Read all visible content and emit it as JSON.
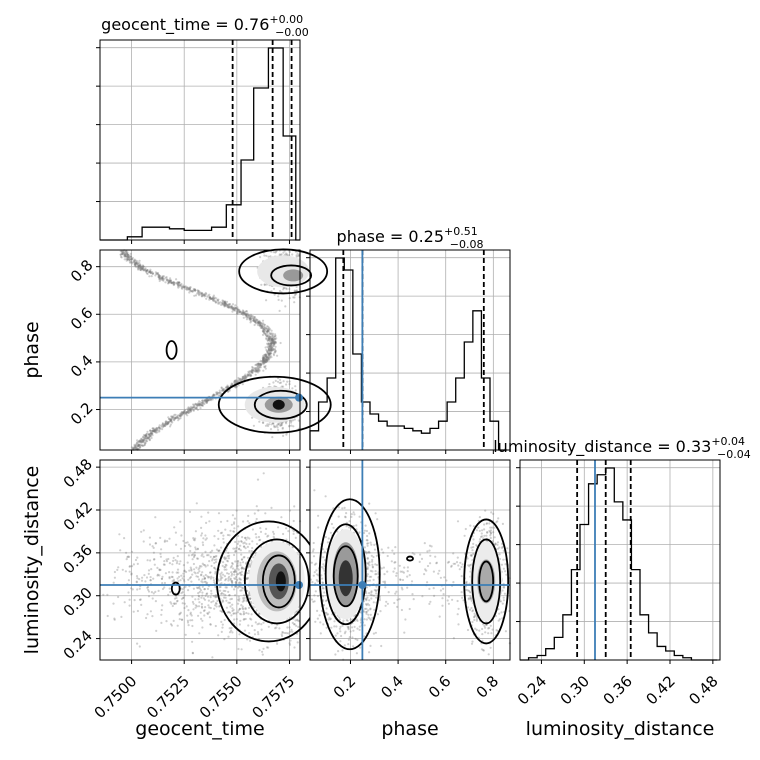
{
  "chart_data": {
    "type": "corner",
    "parameters": [
      "geocent_time",
      "phase",
      "luminosity_distance"
    ],
    "truths": {
      "geocent_time": 0.758,
      "phase": 0.25,
      "luminosity_distance": 0.315
    },
    "truth_color": "#3d7eb6",
    "titles": [
      {
        "param": "geocent_time",
        "label": "geocent_time = 0.76",
        "plus": "+0.00",
        "minus": "−0.00"
      },
      {
        "param": "phase",
        "label": "phase = 0.25",
        "plus": "+0.51",
        "minus": "−0.08"
      },
      {
        "param": "luminosity_distance",
        "label": "luminosity_distance = 0.33",
        "plus": "+0.04",
        "minus": "−0.04"
      }
    ],
    "axes": {
      "geocent_time": {
        "range": [
          0.7485,
          0.758
        ],
        "ticks": [
          0.75,
          0.7525,
          0.755,
          0.7575
        ],
        "tick_labels": [
          "0.7500",
          "0.7525",
          "0.7550",
          "0.7575"
        ],
        "quantiles": [
          0.7548,
          0.7567,
          0.7576
        ]
      },
      "phase": {
        "range": [
          0.03,
          0.87
        ],
        "ticks": [
          0.2,
          0.4,
          0.6,
          0.8
        ],
        "tick_labels": [
          "0.2",
          "0.4",
          "0.6",
          "0.8"
        ],
        "quantiles": [
          0.17,
          0.25,
          0.76
        ]
      },
      "luminosity_distance": {
        "range": [
          0.21,
          0.49
        ],
        "ticks": [
          0.24,
          0.3,
          0.36,
          0.42,
          0.48
        ],
        "tick_labels": [
          "0.24",
          "0.30",
          "0.36",
          "0.42",
          "0.48"
        ],
        "quantiles": [
          0.29,
          0.33,
          0.365
        ]
      }
    },
    "histograms": {
      "geocent_time": {
        "edges": [
          0.7485,
          0.7492,
          0.7498,
          0.7505,
          0.7512,
          0.7518,
          0.7525,
          0.7532,
          0.7538,
          0.7545,
          0.7552,
          0.7558,
          0.7565,
          0.7572,
          0.7578,
          0.758
        ],
        "counts": [
          0,
          0,
          2,
          8,
          8,
          7,
          6,
          6,
          8,
          22,
          50,
          95,
          120,
          65,
          0
        ]
      },
      "phase": {
        "edges": [
          0.03,
          0.066,
          0.102,
          0.138,
          0.174,
          0.21,
          0.246,
          0.282,
          0.318,
          0.354,
          0.39,
          0.426,
          0.462,
          0.498,
          0.534,
          0.57,
          0.606,
          0.642,
          0.678,
          0.714,
          0.75,
          0.786,
          0.822,
          0.858
        ],
        "counts": [
          8,
          20,
          30,
          80,
          75,
          40,
          20,
          15,
          12,
          10,
          10,
          9,
          8,
          7,
          9,
          12,
          20,
          30,
          45,
          58,
          30,
          12,
          0
        ]
      },
      "luminosity_distance": {
        "edges": [
          0.21,
          0.222,
          0.234,
          0.246,
          0.258,
          0.27,
          0.282,
          0.294,
          0.306,
          0.318,
          0.33,
          0.342,
          0.354,
          0.366,
          0.378,
          0.39,
          0.402,
          0.414,
          0.426,
          0.438,
          0.45,
          0.462,
          0.474,
          0.486
        ],
        "counts": [
          0,
          1,
          2,
          5,
          10,
          20,
          40,
          60,
          78,
          82,
          85,
          70,
          62,
          40,
          20,
          12,
          6,
          4,
          2,
          1,
          0,
          0,
          0
        ]
      }
    },
    "pairs": [
      {
        "x": "geocent_time",
        "y": "phase",
        "note": "curved degeneracy, samples along an S-shaped band"
      },
      {
        "x": "geocent_time",
        "y": "luminosity_distance"
      },
      {
        "x": "phase",
        "y": "luminosity_distance"
      }
    ]
  },
  "colors": {
    "hist": "#000000",
    "grid": "#b0b0b0",
    "truth": "#3d7eb6",
    "contour": "#000000"
  }
}
